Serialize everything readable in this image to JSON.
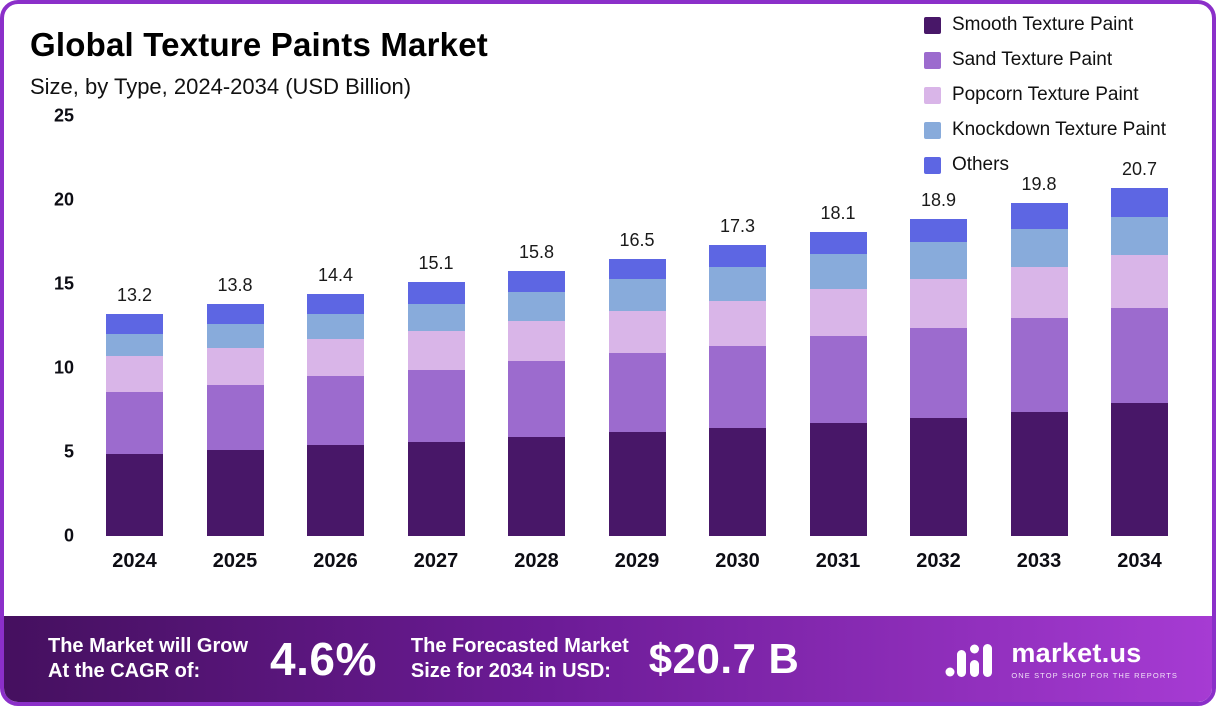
{
  "header": {
    "title": "Global Texture Paints Market",
    "subtitle": "Size, by Type, 2024-2034 (USD Billion)"
  },
  "chart_data": {
    "type": "bar",
    "stacked": true,
    "title": "Global Texture Paints Market Size, by Type, 2024-2034 (USD Billion)",
    "xlabel": "",
    "ylabel": "",
    "ylim": [
      0,
      25
    ],
    "yticks": [
      0,
      5,
      10,
      15,
      20,
      25
    ],
    "grid": false,
    "legend_position": "top-right",
    "categories": [
      "2024",
      "2025",
      "2026",
      "2027",
      "2028",
      "2029",
      "2030",
      "2031",
      "2032",
      "2033",
      "2034"
    ],
    "series": [
      {
        "name": "Smooth Texture Paint",
        "color": "#481768",
        "values": [
          4.9,
          5.1,
          5.4,
          5.6,
          5.9,
          6.2,
          6.4,
          6.7,
          7.0,
          7.4,
          7.9
        ]
      },
      {
        "name": "Sand Texture Paint",
        "color": "#9c6bce",
        "values": [
          3.7,
          3.9,
          4.1,
          4.3,
          4.5,
          4.7,
          4.9,
          5.2,
          5.4,
          5.6,
          5.7
        ]
      },
      {
        "name": "Popcorn Texture Paint",
        "color": "#d9b5e8",
        "values": [
          2.1,
          2.2,
          2.2,
          2.3,
          2.4,
          2.5,
          2.7,
          2.8,
          2.9,
          3.0,
          3.1
        ]
      },
      {
        "name": "Knockdown Texture Paint",
        "color": "#88abdb",
        "values": [
          1.3,
          1.4,
          1.5,
          1.6,
          1.7,
          1.9,
          2.0,
          2.1,
          2.2,
          2.3,
          2.3
        ]
      },
      {
        "name": "Others",
        "color": "#5d66e3",
        "values": [
          1.2,
          1.2,
          1.2,
          1.3,
          1.3,
          1.2,
          1.3,
          1.3,
          1.4,
          1.5,
          1.7
        ]
      }
    ],
    "totals": [
      "13.2",
      "13.8",
      "14.4",
      "15.1",
      "15.8",
      "16.5",
      "17.3",
      "18.1",
      "18.9",
      "19.8",
      "20.7"
    ]
  },
  "footer": {
    "cagr_label_line1": "The Market will Grow",
    "cagr_label_line2": "At the CAGR of:",
    "cagr_value": "4.6%",
    "forecast_label_line1": "The Forecasted Market",
    "forecast_label_line2": "Size for 2034 in USD:",
    "forecast_value": "$20.7 B",
    "brand_name": "market.us",
    "brand_tagline": "ONE STOP SHOP FOR THE REPORTS"
  }
}
